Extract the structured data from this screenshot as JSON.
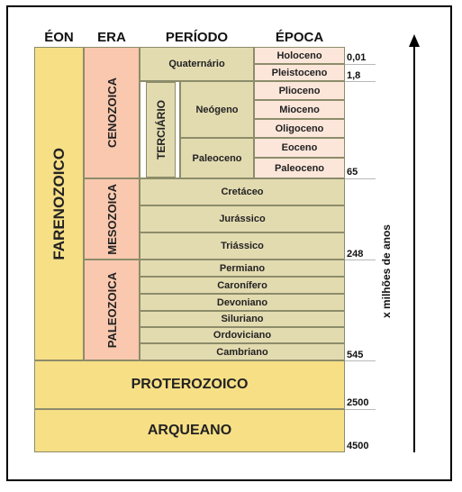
{
  "headers": {
    "eon": "ÉON",
    "era": "ERA",
    "periodo": "PERÍODO",
    "epoca": "ÉPOCA"
  },
  "eons": {
    "farenozoico": "FARENOZOICO",
    "proterozoico": "PROTEROZOICO",
    "arqueano": "ARQUEANO"
  },
  "eras": {
    "cenozoica": "CENOZOICA",
    "mesozoica": "MESOZOICA",
    "paleozoica": "PALEOZOICA"
  },
  "periods": {
    "quaternario": "Quaternário",
    "terciario": "TERCIÁRIO",
    "neogeno": "Neógeno",
    "paleoceno": "Paleoceno",
    "cretaceo": "Cretáceo",
    "jurassico": "Jurássico",
    "triassico": "Triássico",
    "permiano": "Permiano",
    "caronifero": "Caronífero",
    "devoniano": "Devoniano",
    "siluriano": "Siluriano",
    "ordoviciano": "Ordoviciano",
    "cambriano": "Cambriano"
  },
  "epochs": {
    "holoceno": "Holoceno",
    "pleistoceno": "Pleistoceno",
    "plioceno": "Plioceno",
    "mioceno": "Mioceno",
    "oligoceno": "Oligoceno",
    "eoceno": "Eoceno",
    "paleoceno": "Paleoceno"
  },
  "ages": {
    "a001": "0,01",
    "a18": "1,8",
    "a65": "65",
    "a248": "248",
    "a545": "545",
    "a2500": "2500",
    "a4500": "4500"
  },
  "axis_label": "x milhões de anos",
  "colors": {
    "olive": "#e3dbb0",
    "salmon": "#f9c8ae",
    "pink": "#fce6da",
    "gold": "#f7df86"
  }
}
